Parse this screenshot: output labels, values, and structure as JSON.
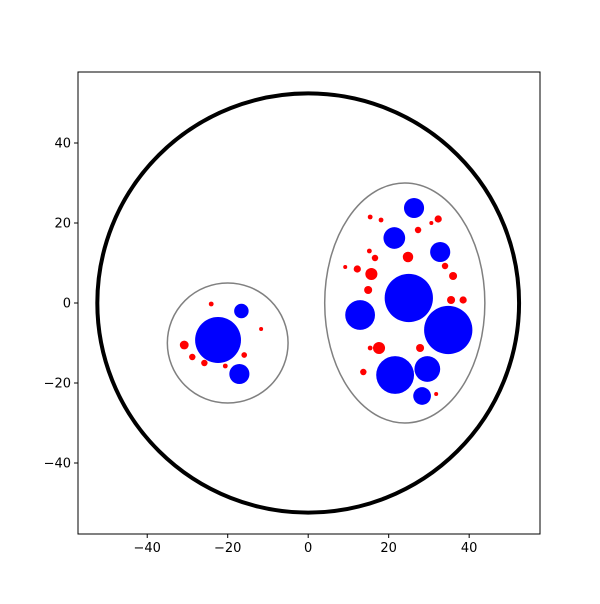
{
  "chart_data": {
    "type": "circles",
    "xlim": [
      -57.2,
      57.6
    ],
    "ylim": [
      -57.75,
      57.75
    ],
    "xticks": [
      {
        "value": -40,
        "label": "−40"
      },
      {
        "value": -20,
        "label": "−20"
      },
      0,
      20,
      40
    ],
    "yticks": [
      {
        "value": -40,
        "label": "−40"
      },
      {
        "value": -20,
        "label": "−20"
      },
      0,
      20,
      40
    ],
    "ellipses": [
      {
        "x": 0,
        "y": 0,
        "rx": 52.4,
        "ry": 52.4,
        "edgecolor": "black",
        "linewidth": 4
      },
      {
        "x": -20,
        "y": -10,
        "rx": 15,
        "ry": 15,
        "edgecolor": "gray",
        "linewidth": 1.5
      },
      {
        "x": 24,
        "y": 0,
        "rx": 19.9,
        "ry": 30,
        "edgecolor": "gray",
        "linewidth": 1.5
      }
    ],
    "series": [
      {
        "color": "blue",
        "x": [
          -22.4,
          -16.6,
          -17.1,
          25,
          34.8,
          21.6,
          12.9,
          29.6,
          21.4,
          26.3,
          32.8,
          28.3
        ],
        "values": [
          -9.25,
          -2,
          -17.75,
          1.25,
          -6.75,
          -18,
          -3,
          -16.5,
          16.25,
          23.75,
          12.75,
          -23.25
        ],
        "sizes": [
          5.7,
          1.8,
          2.5,
          6,
          6,
          4.7,
          3.7,
          3.2,
          2.7,
          2.5,
          2.5,
          2.2
        ]
      },
      {
        "color": "red",
        "x": [
          -30.8,
          -28.8,
          -25.8,
          -24.1,
          -20.6,
          -15.9,
          -11.7,
          15.7,
          24.8,
          17.6,
          12.2,
          14.9,
          16.6,
          15.4,
          18.1,
          32.3,
          27.3,
          30.6,
          34,
          36,
          35.5,
          38.5,
          27.8,
          31.8,
          13.7,
          15.4,
          15.2,
          9.2
        ],
        "values": [
          -10.5,
          -13.5,
          -15,
          -0.25,
          -15.75,
          -13,
          -6.5,
          7.25,
          11.5,
          -11.25,
          8.5,
          3.25,
          11.25,
          21.5,
          20.75,
          21,
          18.25,
          20,
          9.25,
          6.75,
          0.75,
          0.75,
          -11.25,
          -22.75,
          -17.25,
          -11.25,
          13,
          9
        ],
        "sizes": [
          1.1,
          0.8,
          0.8,
          0.6,
          0.6,
          0.7,
          0.5,
          1.5,
          1.3,
          1.5,
          0.9,
          1,
          0.8,
          0.6,
          0.6,
          0.9,
          0.8,
          0.5,
          0.8,
          1,
          1,
          0.9,
          1,
          0.5,
          0.8,
          0.6,
          0.6,
          0.5
        ]
      }
    ]
  }
}
